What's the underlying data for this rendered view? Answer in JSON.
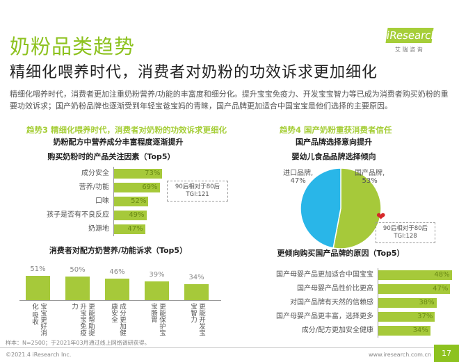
{
  "header": {
    "title": "奶粉品类趋势",
    "subtitle": "精细化喂养时代，消费者对奶粉的功效诉求更加细化",
    "logo": "iResearch",
    "logo_cn": "艾 瑞 咨 询"
  },
  "intro": "精细化喂养时代，消费者更加注重奶粉营养/功能的丰富度和细分化。提升宝宝免疫力、开发宝宝智力等已成为消费者购买奶粉的重要功效诉求；国产奶粉品牌也逐渐受到年轻宝爸宝妈的青睐，国产品牌更加适合中国宝宝是他们选择的主要原因。",
  "left": {
    "trend": "趋势3 精细化喂养时代，消费者对奶粉的功效诉求更细化",
    "heading": "奶粉配方中营养成分丰富程度逐渐提升",
    "note": [
      "90后相对于80后",
      "TGI:121"
    ]
  },
  "right": {
    "trend": "趋势4 国产奶粉重获消费者信任",
    "heading": "国产品牌选择意向提升",
    "note": [
      "90后相对于80后",
      "TGI:128"
    ]
  },
  "colors": {
    "accent": "#a6c93a",
    "pie_blue": "#29b6e8",
    "title_green": "#8dc21f"
  },
  "chart_data": [
    {
      "type": "bar",
      "orientation": "horizontal",
      "title": "购买奶粉时的产品关注因素（Top5）",
      "categories": [
        "成分安全",
        "营养/功能",
        "口味",
        "孩子是否有不良反应",
        "奶源地"
      ],
      "values": [
        73,
        69,
        52,
        49,
        47
      ],
      "labels": [
        "73%",
        "69%",
        "52%",
        "49%",
        "47%"
      ],
      "unit": "%"
    },
    {
      "type": "bar",
      "orientation": "vertical",
      "title": "消费者对配方奶营养/功能诉求（Top5）",
      "categories": [
        "宝宝更好消化·吸收",
        "更能帮助提升宝宝免疫力",
        "成分更加健康安全",
        "更能保护宝宝肠胃",
        "更能开发宝宝智力"
      ],
      "values": [
        51,
        50,
        46,
        39,
        34
      ],
      "labels": [
        "51%",
        "50%",
        "46%",
        "39%",
        "34%"
      ],
      "unit": "%"
    },
    {
      "type": "pie",
      "title": "婴幼儿食品品牌选择倾向",
      "categories": [
        "进口品牌,",
        "国产品牌,"
      ],
      "values": [
        47,
        53
      ],
      "labels": [
        "47%",
        "53%"
      ],
      "colors": [
        "#29b6e8",
        "#a6c93a"
      ]
    },
    {
      "type": "bar",
      "orientation": "horizontal",
      "title": "更倾向购买国产品牌的原因（Top5）",
      "categories": [
        "国产母婴产品更加适合中国宝宝",
        "国产母婴产品性价比更高",
        "对国产品牌有天然的信赖感",
        "国产母婴产品更丰富，选择更多",
        "成分/配方更加安全健康"
      ],
      "values": [
        48,
        47,
        38,
        37,
        34
      ],
      "labels": [
        "48%",
        "47%",
        "38%",
        "37%",
        "34%"
      ],
      "unit": "%"
    }
  ],
  "footer": {
    "source": "样本：N=2500；于2021年03月通过线上网络调研获得。",
    "copyright": "©2021.4 iResearch Inc.",
    "url": "www.iresearch.com.cn",
    "page": "17"
  }
}
